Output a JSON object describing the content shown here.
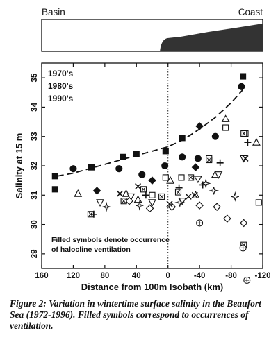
{
  "profile": {
    "left_label": "Basin",
    "right_label": "Coast"
  },
  "chart_data": {
    "type": "scatter",
    "xlabel": "Distance from 100m Isobath (km)",
    "ylabel": "Salinity at 15 m",
    "xlim": [
      160,
      -120
    ],
    "ylim": [
      28.5,
      35.5
    ],
    "x_reversed": true,
    "xticks": [
      160,
      120,
      80,
      40,
      0,
      -40,
      -80,
      -120
    ],
    "xtick_labels": [
      "160",
      "120",
      "80",
      "40",
      "0",
      "-40",
      "-80",
      "-120"
    ],
    "yticks": [
      29,
      30,
      31,
      32,
      33,
      34,
      35
    ],
    "ytick_labels": [
      "29",
      "30",
      "31",
      "32",
      "33",
      "34",
      "35"
    ],
    "reference_line_x": 0,
    "legend": [
      "1970's",
      "1980's",
      "1990's"
    ],
    "annotation": [
      "Filled symbols denote occurrence",
      "of halocline ventilation"
    ],
    "trend_curve": [
      [
        140,
        31.65
      ],
      [
        120,
        31.75
      ],
      [
        100,
        31.9
      ],
      [
        80,
        32.05
      ],
      [
        60,
        32.2
      ],
      [
        40,
        32.35
      ],
      [
        20,
        32.5
      ],
      [
        0,
        32.65
      ],
      [
        -20,
        32.9
      ],
      [
        -40,
        33.25
      ],
      [
        -60,
        33.65
      ],
      [
        -80,
        34.15
      ],
      [
        -95,
        34.6
      ]
    ],
    "series": [
      {
        "marker": "square",
        "filled": true,
        "points": [
          [
            143,
            31.65
          ],
          [
            143,
            31.2
          ],
          [
            97,
            31.95
          ],
          [
            57,
            32.3
          ],
          [
            40,
            32.4
          ],
          [
            3,
            32.5
          ],
          [
            -18,
            32.95
          ],
          [
            -95,
            35.05
          ]
        ]
      },
      {
        "marker": "circle",
        "filled": true,
        "points": [
          [
            120,
            31.9
          ],
          [
            62,
            31.9
          ],
          [
            33,
            31.7
          ],
          [
            4,
            32.0
          ],
          [
            -18,
            32.3
          ],
          [
            -38,
            32.25
          ],
          [
            -60,
            33.0
          ],
          [
            -93,
            34.7
          ]
        ]
      },
      {
        "marker": "diamond",
        "filled": true,
        "points": [
          [
            90,
            31.15
          ],
          [
            20,
            31.5
          ],
          [
            -40,
            33.35
          ],
          [
            -35,
            31.95
          ]
        ]
      },
      {
        "marker": "triangle",
        "filled": false,
        "points": [
          [
            114,
            31.05
          ],
          [
            53,
            31.05
          ],
          [
            38,
            30.85
          ],
          [
            -3,
            31.5
          ],
          [
            -35,
            31.0
          ],
          [
            -60,
            31.7
          ],
          [
            -73,
            33.6
          ],
          [
            -112,
            32.8
          ]
        ]
      },
      {
        "marker": "triangle-down",
        "filled": false,
        "points": [
          [
            86,
            30.75
          ],
          [
            47,
            30.95
          ],
          [
            20,
            30.75
          ],
          [
            -18,
            30.8
          ],
          [
            -38,
            31.55
          ],
          [
            -64,
            31.7
          ],
          [
            -96,
            32.25
          ]
        ]
      },
      {
        "marker": "square",
        "filled": false,
        "points": [
          [
            20,
            31.0
          ],
          [
            3,
            31.6
          ],
          [
            -17,
            31.6
          ],
          [
            -52,
            32.25
          ],
          [
            -73,
            33.3
          ],
          [
            -98,
            33.1
          ],
          [
            -115,
            30.75
          ]
        ]
      },
      {
        "marker": "diamond",
        "filled": false,
        "points": [
          [
            49,
            30.8
          ],
          [
            23,
            30.55
          ],
          [
            -5,
            30.6
          ],
          [
            -40,
            30.65
          ],
          [
            -62,
            30.6
          ],
          [
            -75,
            30.2
          ],
          [
            -96,
            30.05
          ]
        ]
      },
      {
        "marker": "boxed-x",
        "filled": false,
        "points": [
          [
            98,
            30.35
          ],
          [
            56,
            30.8
          ],
          [
            31,
            31.2
          ],
          [
            8,
            30.95
          ],
          [
            -13,
            31.1
          ],
          [
            -29,
            31.6
          ],
          [
            -52,
            32.2
          ],
          [
            -96,
            33.1
          ],
          [
            -96,
            29.3
          ]
        ]
      },
      {
        "marker": "plus",
        "filled": false,
        "points": [
          [
            94,
            30.35
          ],
          [
            28,
            31.0
          ],
          [
            -14,
            31.25
          ],
          [
            -44,
            31.35
          ],
          [
            -66,
            32.1
          ],
          [
            -101,
            32.8
          ]
        ]
      },
      {
        "marker": "x",
        "filled": false,
        "points": [
          [
            61,
            31.05
          ],
          [
            38,
            31.3
          ],
          [
            -2,
            30.7
          ],
          [
            -26,
            30.95
          ],
          [
            -34,
            31.0
          ],
          [
            -98,
            32.25
          ]
        ]
      },
      {
        "marker": "star",
        "filled": false,
        "points": [
          [
            78,
            30.6
          ],
          [
            36,
            30.65
          ],
          [
            -15,
            30.75
          ],
          [
            -48,
            31.4
          ],
          [
            -58,
            31.15
          ],
          [
            -85,
            30.95
          ]
        ]
      },
      {
        "marker": "circle-plus",
        "filled": false,
        "points": [
          [
            -40,
            30.05
          ],
          [
            -95,
            29.2
          ],
          [
            -100,
            28.1
          ]
        ]
      }
    ]
  },
  "caption": "Figure 2: Variation in wintertime surface salinity in the Beaufort Sea (1972-1996). Filled symbols correspond to occurrences of ventilation."
}
